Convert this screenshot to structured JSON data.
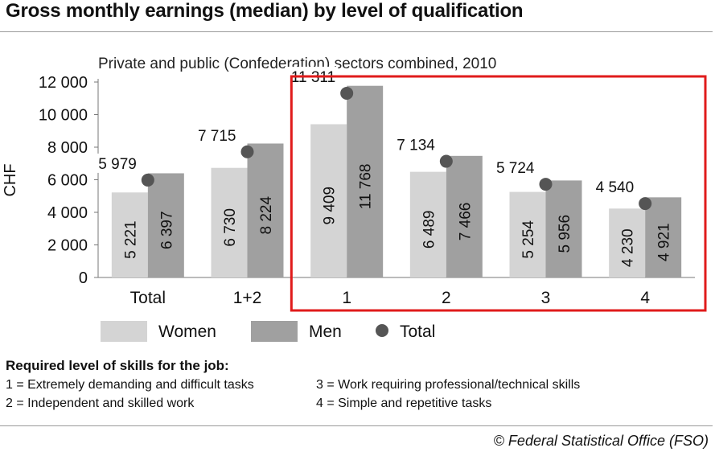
{
  "title": "Gross monthly earnings (median) by level of qualification",
  "chart_data": {
    "type": "bar",
    "subtitle": "Private and public (Confederation) sectors combined, 2010",
    "ylabel": "CHF",
    "ylim": [
      0,
      12000
    ],
    "yticks": [
      "0",
      "2 000",
      "4 000",
      "6 000",
      "8 000",
      "10 000",
      "12 000"
    ],
    "categories": [
      "Total",
      "1+2",
      "1",
      "2",
      "3",
      "4"
    ],
    "series": [
      {
        "name": "Women",
        "values": [
          5221,
          6730,
          9409,
          6489,
          5254,
          4230
        ],
        "labels": [
          "5 221",
          "6 730",
          "9 409",
          "6 489",
          "5 254",
          "4 230"
        ],
        "color": "#d4d4d4"
      },
      {
        "name": "Men",
        "values": [
          6397,
          8224,
          11768,
          7466,
          5956,
          4921
        ],
        "labels": [
          "6 397",
          "8 224",
          "11 768",
          "7 466",
          "5 956",
          "4 921"
        ],
        "color": "#a0a0a0"
      },
      {
        "name": "Total",
        "values": [
          5979,
          7715,
          11311,
          7134,
          5724,
          4540
        ],
        "labels": [
          "5 979",
          "7 715",
          "11 311",
          "7 134",
          "5 724",
          "4 540"
        ],
        "color": "#555555"
      }
    ],
    "legend_position": "bottom",
    "highlight_color": "#e01b1b"
  },
  "notes": {
    "heading": "Required level of skills for the job:",
    "items": [
      "1 = Extremely demanding and difficult tasks",
      "2 = Independent and skilled work",
      "3 = Work requiring professional/technical skills",
      "4 = Simple and repetitive tasks"
    ]
  },
  "source": "© Federal Statistical Office (FSO)"
}
